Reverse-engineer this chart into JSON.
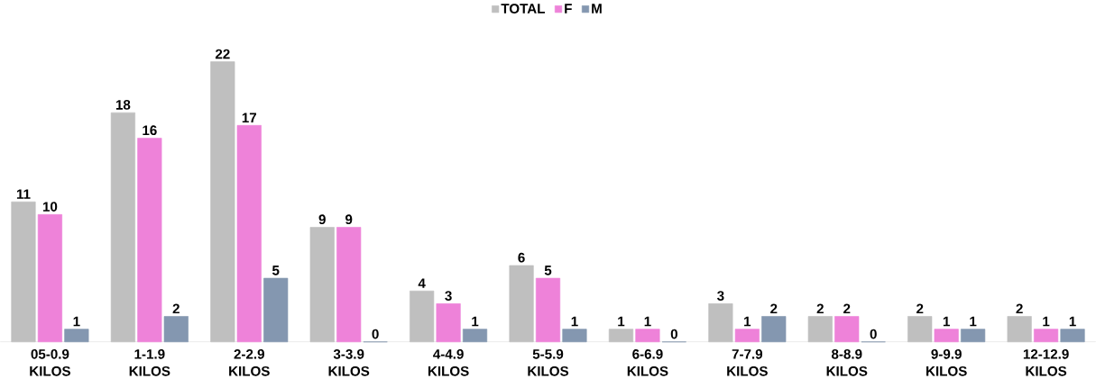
{
  "chart_data": {
    "type": "bar",
    "categories": [
      "05-0.9 KILOS",
      "1-1.9 KILOS",
      "2-2.9 KILOS",
      "3-3.9 KILOS",
      "4-4.9 KILOS",
      "5-5.9 KILOS",
      "6-6.9 KILOS",
      "7-7.9 KILOS",
      "8-8.9 KILOS",
      "9-9.9 KILOS",
      "12-12.9 KILOS"
    ],
    "series": [
      {
        "name": "TOTAL",
        "color": "#bfbfbf",
        "values": [
          11,
          18,
          22,
          9,
          4,
          6,
          1,
          3,
          2,
          2,
          2
        ]
      },
      {
        "name": "F",
        "color": "#ee82d9",
        "values": [
          10,
          16,
          17,
          9,
          3,
          5,
          1,
          1,
          2,
          1,
          1
        ]
      },
      {
        "name": "M",
        "color": "#8497b0",
        "values": [
          1,
          2,
          5,
          0,
          1,
          1,
          0,
          2,
          0,
          1,
          1
        ]
      }
    ],
    "data_labels": true,
    "legend": "top"
  }
}
